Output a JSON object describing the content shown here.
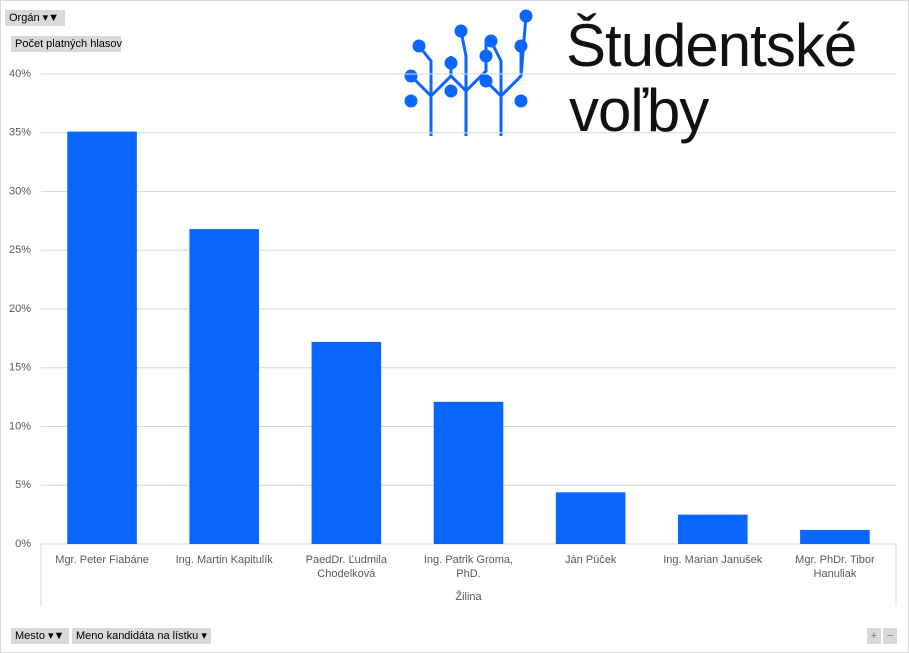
{
  "chart_data": {
    "type": "bar",
    "categories": [
      "Mgr. Peter Fiabáne",
      "Ing. Martin Kapitulík",
      "PaedDr. Ľudmila Chodelková",
      "Ing. Patrik Groma, PhD.",
      "Ján Púček",
      "Ing. Marian Janušek",
      "Mgr. PhDr. Tibor Hanuliak"
    ],
    "values": [
      35.1,
      26.8,
      17.2,
      12.1,
      4.4,
      2.5,
      1.2
    ],
    "color": "#0a66ff",
    "ylim": [
      0,
      40
    ],
    "yticks": [
      {
        "value": 0,
        "label": "0%"
      },
      {
        "value": 5,
        "label": "5%"
      },
      {
        "value": 10,
        "label": "10%"
      },
      {
        "value": 15,
        "label": "15%"
      },
      {
        "value": 20,
        "label": "20%"
      },
      {
        "value": 25,
        "label": "25%"
      },
      {
        "value": 30,
        "label": "30%"
      },
      {
        "value": 35,
        "label": "35%"
      },
      {
        "value": 40,
        "label": "40%"
      }
    ],
    "grid": true,
    "group_label": "Žilina"
  },
  "pivot": {
    "report_filter": "Orgán",
    "values_field": "Počet platných hlasov",
    "axis_fields": [
      "Mesto",
      "Meno kandidáta na lístku"
    ]
  },
  "logo": {
    "line1": "Študentské",
    "line2": "voľby"
  }
}
